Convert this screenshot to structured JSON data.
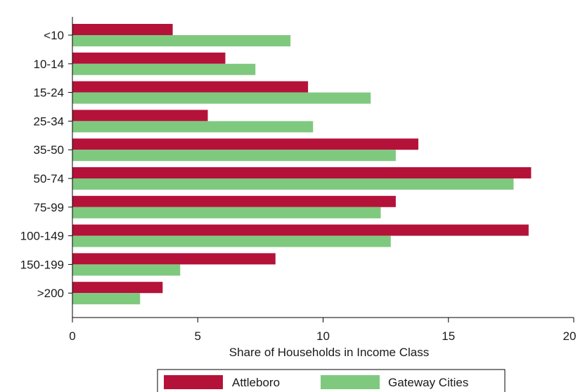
{
  "chart_data": {
    "type": "bar",
    "orientation": "horizontal",
    "categories": [
      "<10",
      "10-14",
      "15-24",
      "25-34",
      "35-50",
      "50-74",
      "75-99",
      "100-149",
      "150-199",
      ">200"
    ],
    "series": [
      {
        "name": "Attleboro",
        "color": "#b5123a",
        "values": [
          4.0,
          6.1,
          9.4,
          5.4,
          13.8,
          18.3,
          12.9,
          18.2,
          8.1,
          3.6
        ]
      },
      {
        "name": "Gateway Cities",
        "color": "#7fc97f",
        "values": [
          8.7,
          7.3,
          11.9,
          9.6,
          12.9,
          17.6,
          12.3,
          12.7,
          4.3,
          2.7
        ]
      }
    ],
    "xlabel": "Share of Households in Income Class",
    "xlim": [
      0,
      20
    ],
    "xticks": [
      "0",
      "5",
      "10",
      "15",
      "20"
    ],
    "grid": false,
    "legend_position": "bottom"
  }
}
